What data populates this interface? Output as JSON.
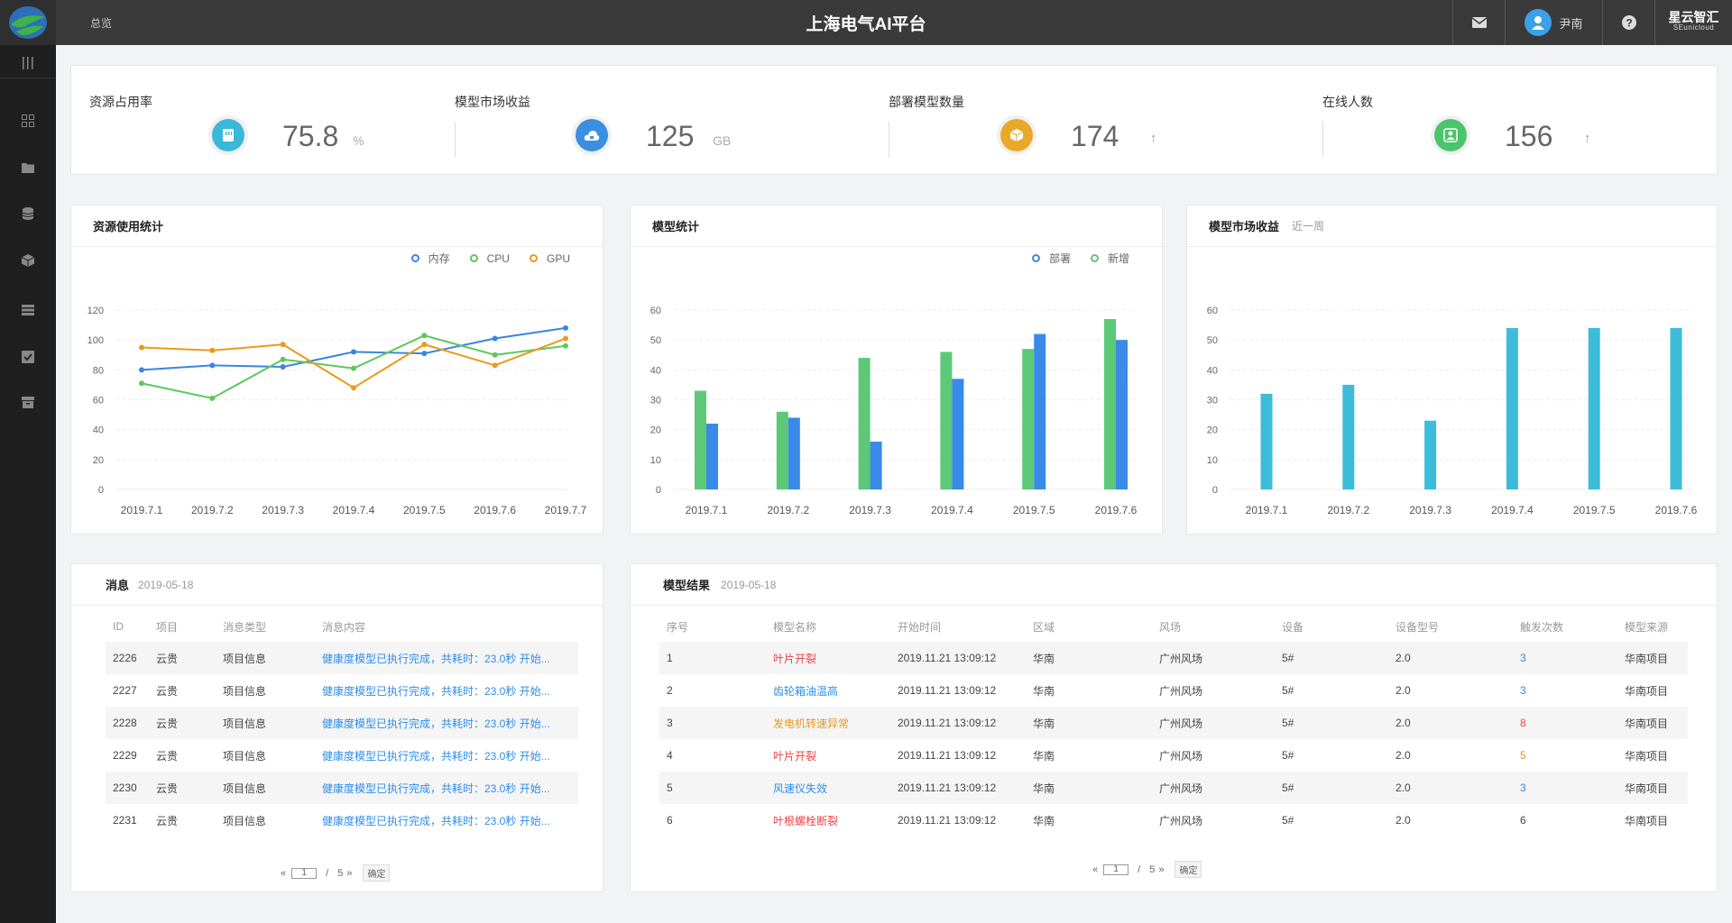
{
  "header": {
    "breadcrumb": "总览",
    "title": "上海电气AI平台",
    "user_name": "尹南",
    "brand": "星云智汇",
    "brand_sub": "SEunicloud"
  },
  "sidebar": {
    "items": [
      "menu-toggle",
      "dashboard",
      "folder",
      "database",
      "cube",
      "list",
      "tasks",
      "archive"
    ]
  },
  "stats": [
    {
      "label": "资源占用率",
      "value": "75.8",
      "unit": "%",
      "icon": "storage-icon",
      "color": "#3ab8d8"
    },
    {
      "label": "模型市场收益",
      "value": "125",
      "unit": "GB",
      "icon": "cloud-icon",
      "color": "#3a8fe0"
    },
    {
      "label": "部署模型数量",
      "value": "174",
      "arrow": "↑",
      "icon": "box-icon",
      "color": "#e8a92a"
    },
    {
      "label": "在线人数",
      "value": "156",
      "arrow": "↑",
      "icon": "user-icon",
      "color": "#4cc46c"
    }
  ],
  "panels": {
    "resource": {
      "title": "资源使用统计"
    },
    "model": {
      "title": "模型统计"
    },
    "market": {
      "title": "模型市场收益",
      "sub": "近一周"
    }
  },
  "chart_data": [
    {
      "type": "line",
      "x": [
        "2019.7.1",
        "2019.7.2",
        "2019.7.3",
        "2019.7.4",
        "2019.7.5",
        "2019.7.6",
        "2019.7.7"
      ],
      "series": [
        {
          "name": "内存",
          "color": "#3a85e0",
          "values": [
            80,
            83,
            82,
            92,
            91,
            101,
            108
          ]
        },
        {
          "name": "CPU",
          "color": "#5cc85c",
          "values": [
            71,
            61,
            87,
            81,
            103,
            90,
            96
          ]
        },
        {
          "name": "GPU",
          "color": "#ea9a1a",
          "values": [
            95,
            93,
            97,
            68,
            97,
            83,
            101
          ]
        }
      ],
      "ylim": [
        0,
        120
      ],
      "yticks": [
        0,
        20,
        40,
        60,
        80,
        100,
        120
      ]
    },
    {
      "type": "bar",
      "categories": [
        "2019.7.1",
        "2019.7.2",
        "2019.7.3",
        "2019.7.4",
        "2019.7.5",
        "2019.7.6"
      ],
      "series": [
        {
          "name": "新增",
          "color": "#5cc878",
          "values": [
            33,
            26,
            44,
            46,
            47,
            57
          ]
        },
        {
          "name": "部署",
          "color": "#3a8ae8",
          "values": [
            22,
            24,
            16,
            37,
            52,
            50
          ]
        }
      ],
      "ylim": [
        0,
        60
      ],
      "yticks": [
        0,
        10,
        20,
        30,
        40,
        50,
        60
      ]
    },
    {
      "type": "bar",
      "categories": [
        "2019.7.1",
        "2019.7.2",
        "2019.7.3",
        "2019.7.4",
        "2019.7.5",
        "2019.7.6"
      ],
      "series": [
        {
          "color": "#3cbcd8",
          "values": [
            32,
            35,
            23,
            54,
            54,
            54
          ]
        }
      ],
      "ylim": [
        0,
        60
      ],
      "yticks": [
        0,
        10,
        20,
        30,
        40,
        50,
        60
      ]
    }
  ],
  "messages": {
    "title": "消息",
    "date": "2019-05-18",
    "columns": [
      "ID",
      "项目",
      "消息类型",
      "消息内容"
    ],
    "rows": [
      [
        "2226",
        "云贵",
        "项目信息",
        "健康度模型已执行完成，共耗时：23.0秒  开始..."
      ],
      [
        "2227",
        "云贵",
        "项目信息",
        "健康度模型已执行完成，共耗时：23.0秒  开始..."
      ],
      [
        "2228",
        "云贵",
        "项目信息",
        "健康度模型已执行完成，共耗时：23.0秒  开始..."
      ],
      [
        "2229",
        "云贵",
        "项目信息",
        "健康度模型已执行完成，共耗时：23.0秒  开始..."
      ],
      [
        "2230",
        "云贵",
        "项目信息",
        "健康度模型已执行完成，共耗时：23.0秒  开始..."
      ],
      [
        "2231",
        "云贵",
        "项目信息",
        "健康度模型已执行完成，共耗时：23.0秒  开始..."
      ]
    ],
    "pager": {
      "prev": "«",
      "page": "1",
      "sep": "/",
      "total": "5",
      "next": "»",
      "ok": "确定"
    }
  },
  "results": {
    "title": "模型结果",
    "date": "2019-05-18",
    "columns": [
      "序号",
      "模型名称",
      "开始时间",
      "区域",
      "风场",
      "设备",
      "设备型号",
      "触发次数",
      "模型来源"
    ],
    "rows": [
      {
        "cells": [
          "1",
          "叶片开裂",
          "2019.11.21  13:09:12",
          "华南",
          "广州风场",
          "5#",
          "2.0",
          "3",
          "华南项目"
        ],
        "name_color": "#e84545",
        "count_color": "#2e8de6"
      },
      {
        "cells": [
          "2",
          "齿轮箱油温高",
          "2019.11.21  13:09:12",
          "华南",
          "广州风场",
          "5#",
          "2.0",
          "3",
          "华南项目"
        ],
        "name_color": "#2e8de6",
        "count_color": "#2e8de6"
      },
      {
        "cells": [
          "3",
          "发电机转速异常",
          "2019.11.21  13:09:12",
          "华南",
          "广州风场",
          "5#",
          "2.0",
          "8",
          "华南项目"
        ],
        "name_color": "#e69a1d",
        "count_color": "#e84545"
      },
      {
        "cells": [
          "4",
          "叶片开裂",
          "2019.11.21  13:09:12",
          "华南",
          "广州风场",
          "5#",
          "2.0",
          "5",
          "华南项目"
        ],
        "name_color": "#e84545",
        "count_color": "#e69a1d"
      },
      {
        "cells": [
          "5",
          "风速仪失效",
          "2019.11.21  13:09:12",
          "华南",
          "广州风场",
          "5#",
          "2.0",
          "3",
          "华南项目"
        ],
        "name_color": "#2e8de6",
        "count_color": "#2e8de6"
      },
      {
        "cells": [
          "6",
          "叶根螺栓断裂",
          "2019.11.21  13:09:12",
          "华南",
          "广州风场",
          "5#",
          "2.0",
          "6",
          "华南项目"
        ],
        "name_color": "#e84545",
        "count_color": "#444444"
      }
    ],
    "pager": {
      "prev": "«",
      "page": "1",
      "sep": "/",
      "total": "5",
      "next": "»",
      "ok": "确定"
    }
  }
}
